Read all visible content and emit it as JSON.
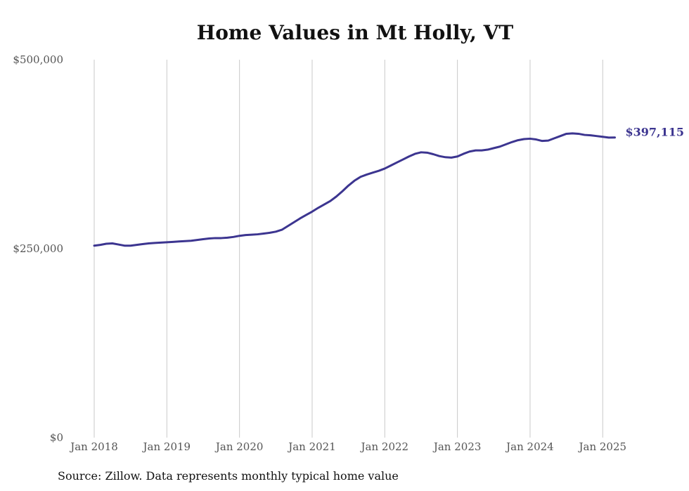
{
  "colors": {
    "line": "#3c3590",
    "grid": "#c9c9c9",
    "text": "#111111",
    "tick": "#555555"
  },
  "chart_data": {
    "type": "line",
    "title": "Home Values in Mt Holly, VT",
    "source": "Source: Zillow. Data represents monthly typical home value",
    "xlabel": "",
    "ylabel": "",
    "ylim": [
      0,
      500000
    ],
    "xlim": [
      "2018-01",
      "2025-03"
    ],
    "yticks": [
      {
        "value": 0,
        "label": "$0"
      },
      {
        "value": 250000,
        "label": "$250,000"
      },
      {
        "value": 500000,
        "label": "$500,000"
      }
    ],
    "xticks": [
      {
        "value": "2018-01",
        "label": "Jan 2018"
      },
      {
        "value": "2019-01",
        "label": "Jan 2019"
      },
      {
        "value": "2020-01",
        "label": "Jan 2020"
      },
      {
        "value": "2021-01",
        "label": "Jan 2021"
      },
      {
        "value": "2022-01",
        "label": "Jan 2022"
      },
      {
        "value": "2023-01",
        "label": "Jan 2023"
      },
      {
        "value": "2024-01",
        "label": "Jan 2024"
      },
      {
        "value": "2025-01",
        "label": "Jan 2025"
      }
    ],
    "grid": "vertical",
    "end_label": "$397,115",
    "series": [
      {
        "points": [
          [
            "2018-01",
            254000
          ],
          [
            "2018-02",
            255000
          ],
          [
            "2018-03",
            256500
          ],
          [
            "2018-04",
            257000
          ],
          [
            "2018-05",
            255500
          ],
          [
            "2018-06",
            254000
          ],
          [
            "2018-07",
            254000
          ],
          [
            "2018-08",
            255000
          ],
          [
            "2018-09",
            256000
          ],
          [
            "2018-10",
            257000
          ],
          [
            "2018-11",
            257500
          ],
          [
            "2018-12",
            258000
          ],
          [
            "2019-01",
            258500
          ],
          [
            "2019-02",
            259000
          ],
          [
            "2019-03",
            259500
          ],
          [
            "2019-04",
            260000
          ],
          [
            "2019-05",
            260500
          ],
          [
            "2019-06",
            261500
          ],
          [
            "2019-07",
            262500
          ],
          [
            "2019-08",
            263500
          ],
          [
            "2019-09",
            264000
          ],
          [
            "2019-10",
            264000
          ],
          [
            "2019-11",
            264500
          ],
          [
            "2019-12",
            265500
          ],
          [
            "2020-01",
            267000
          ],
          [
            "2020-02",
            268000
          ],
          [
            "2020-03",
            268500
          ],
          [
            "2020-04",
            269000
          ],
          [
            "2020-05",
            270000
          ],
          [
            "2020-06",
            271000
          ],
          [
            "2020-07",
            272500
          ],
          [
            "2020-08",
            275000
          ],
          [
            "2020-09",
            280000
          ],
          [
            "2020-10",
            285000
          ],
          [
            "2020-11",
            290000
          ],
          [
            "2020-12",
            294500
          ],
          [
            "2021-01",
            299000
          ],
          [
            "2021-02",
            304000
          ],
          [
            "2021-03",
            308500
          ],
          [
            "2021-04",
            313000
          ],
          [
            "2021-05",
            319000
          ],
          [
            "2021-06",
            326000
          ],
          [
            "2021-07",
            333500
          ],
          [
            "2021-08",
            340000
          ],
          [
            "2021-09",
            345000
          ],
          [
            "2021-10",
            348000
          ],
          [
            "2021-11",
            350500
          ],
          [
            "2021-12",
            353000
          ],
          [
            "2022-01",
            356000
          ],
          [
            "2022-02",
            360000
          ],
          [
            "2022-03",
            364000
          ],
          [
            "2022-04",
            368000
          ],
          [
            "2022-05",
            372000
          ],
          [
            "2022-06",
            375500
          ],
          [
            "2022-07",
            377500
          ],
          [
            "2022-08",
            377000
          ],
          [
            "2022-09",
            375000
          ],
          [
            "2022-10",
            372500
          ],
          [
            "2022-11",
            371000
          ],
          [
            "2022-12",
            370500
          ],
          [
            "2023-01",
            372000
          ],
          [
            "2023-02",
            375500
          ],
          [
            "2023-03",
            378500
          ],
          [
            "2023-04",
            380000
          ],
          [
            "2023-05",
            380000
          ],
          [
            "2023-06",
            381000
          ],
          [
            "2023-07",
            383000
          ],
          [
            "2023-08",
            385000
          ],
          [
            "2023-09",
            388000
          ],
          [
            "2023-10",
            391000
          ],
          [
            "2023-11",
            393500
          ],
          [
            "2023-12",
            395000
          ],
          [
            "2024-01",
            395500
          ],
          [
            "2024-02",
            394500
          ],
          [
            "2024-03",
            392500
          ],
          [
            "2024-04",
            393000
          ],
          [
            "2024-05",
            396000
          ],
          [
            "2024-06",
            399000
          ],
          [
            "2024-07",
            402000
          ],
          [
            "2024-08",
            402500
          ],
          [
            "2024-09",
            402000
          ],
          [
            "2024-10",
            400500
          ],
          [
            "2024-11",
            400000
          ],
          [
            "2024-12",
            399000
          ],
          [
            "2025-01",
            398000
          ],
          [
            "2025-02",
            397000
          ],
          [
            "2025-03",
            397115
          ]
        ]
      }
    ]
  }
}
